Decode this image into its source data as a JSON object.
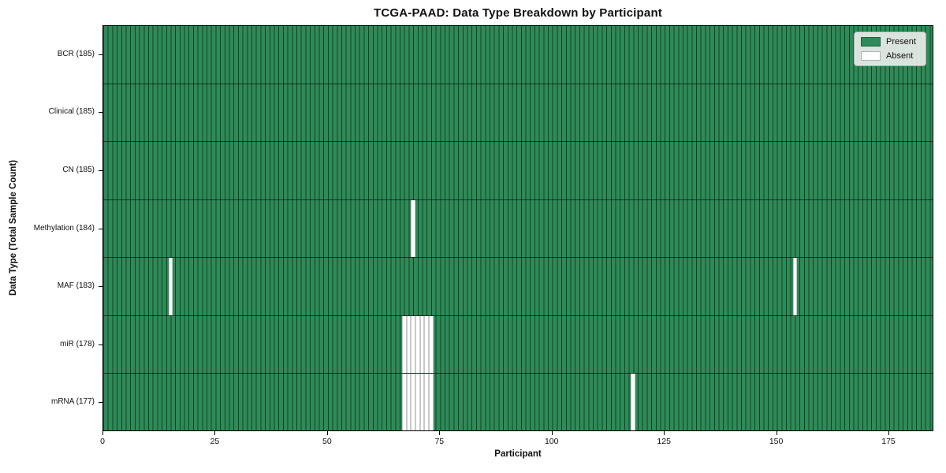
{
  "chart_data": {
    "type": "heatmap",
    "title": "TCGA-PAAD: Data Type Breakdown by Participant",
    "xlabel": "Participant",
    "ylabel": "Data Type (Total Sample Count)",
    "n_participants": 185,
    "xlim": [
      0,
      185
    ],
    "x_ticks": [
      0,
      25,
      50,
      75,
      100,
      125,
      150,
      175
    ],
    "grid": false,
    "legend_position": "upper right",
    "rows": [
      {
        "name": "BCR",
        "label": "BCR (185)",
        "count": 185,
        "missing_participants": []
      },
      {
        "name": "Clinical",
        "label": "Clinical (185)",
        "count": 185,
        "missing_participants": []
      },
      {
        "name": "CN",
        "label": "CN (185)",
        "count": 185,
        "missing_participants": []
      },
      {
        "name": "Methylation",
        "label": "Methylation (184)",
        "count": 184,
        "missing_participants": [
          69
        ]
      },
      {
        "name": "MAF",
        "label": "MAF (183)",
        "count": 183,
        "missing_participants": [
          15,
          154
        ]
      },
      {
        "name": "miR",
        "label": "miR (178)",
        "count": 178,
        "missing_participants": [
          67,
          68,
          69,
          70,
          71,
          72,
          73
        ]
      },
      {
        "name": "mRNA",
        "label": "mRNA (177)",
        "count": 177,
        "missing_participants": [
          67,
          68,
          69,
          70,
          71,
          72,
          73,
          118
        ]
      }
    ],
    "legend": {
      "entries": [
        {
          "label": "Present",
          "color": "#2E8B57"
        },
        {
          "label": "Absent",
          "color": "#FFFFFF"
        }
      ]
    },
    "colors": {
      "present": "#2E8B57",
      "absent": "#FFFFFF",
      "bar_edge": "#15402a",
      "absent_edge": "#c9c9c9",
      "row_divider": "#1a1a1a",
      "plot_border": "#000000",
      "legend_bg": "#E9EDEA"
    }
  }
}
